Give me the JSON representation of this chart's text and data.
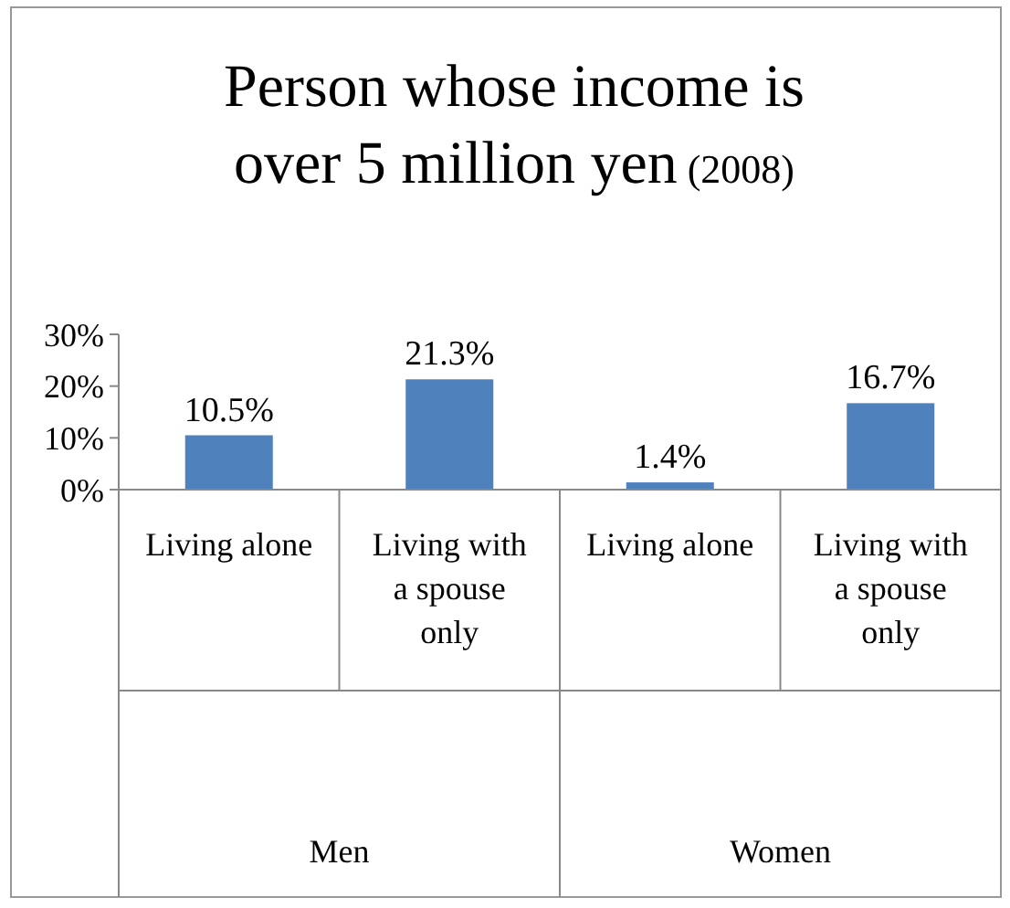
{
  "chart_data": {
    "type": "bar",
    "title": "Person whose income is over 5 million yen",
    "subtitle": "(2008)",
    "categories": [
      "Living alone",
      "Living with a spouse only",
      "Living alone",
      "Living with a spouse only"
    ],
    "values": [
      10.5,
      21.3,
      1.4,
      16.7
    ],
    "value_labels": [
      "10.5%",
      "21.3%",
      "1.4%",
      "16.7%"
    ],
    "color": "#4f81bd",
    "annotations": [
      "Men",
      "Women"
    ],
    "ylim": [
      0,
      30
    ],
    "yticks": [
      {
        "value": 0,
        "label": "0%"
      },
      {
        "value": 10,
        "label": "10%"
      },
      {
        "value": 20,
        "label": "20%"
      },
      {
        "value": 30,
        "label": "30%"
      }
    ],
    "grid": false
  }
}
